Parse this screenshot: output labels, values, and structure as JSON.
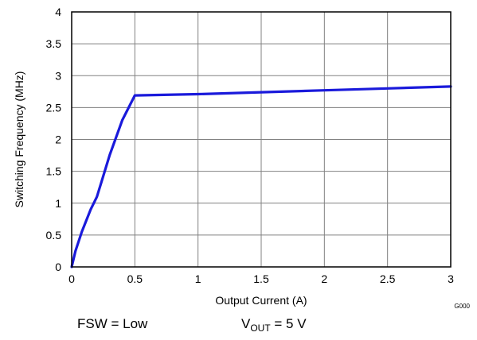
{
  "chart_data": {
    "type": "line",
    "xlabel": "Output Current (A)",
    "ylabel": "Switching Frequency (MHz)",
    "xlim": [
      0,
      3
    ],
    "ylim": [
      0,
      4
    ],
    "xticks": [
      0,
      0.5,
      1,
      1.5,
      2,
      2.5,
      3
    ],
    "yticks": [
      0,
      0.5,
      1,
      1.5,
      2,
      2.5,
      3,
      3.5,
      4
    ],
    "xtick_labels": [
      "0",
      "0.5",
      "1",
      "1.5",
      "2",
      "2.5",
      "3"
    ],
    "ytick_labels": [
      "0",
      "0.5",
      "1",
      "1.5",
      "2",
      "2.5",
      "3",
      "3.5",
      "4"
    ],
    "grid": true,
    "series": [
      {
        "color": "#1a1adb",
        "x": [
          0,
          0.03,
          0.08,
          0.15,
          0.2,
          0.3,
          0.4,
          0.5,
          1,
          1.5,
          2,
          2.5,
          3
        ],
        "y": [
          0,
          0.25,
          0.55,
          0.9,
          1.1,
          1.75,
          2.3,
          2.69,
          2.71,
          2.74,
          2.77,
          2.8,
          2.83
        ]
      }
    ]
  },
  "figure_code": "G000",
  "conditions": {
    "fsw": "FSW = Low",
    "vout_prefix": "V",
    "vout_sub": "OUT",
    "vout_value": " = 5 V"
  },
  "colors": {
    "line": "#1a1adb",
    "grid": "#808080",
    "frame": "#000000"
  }
}
